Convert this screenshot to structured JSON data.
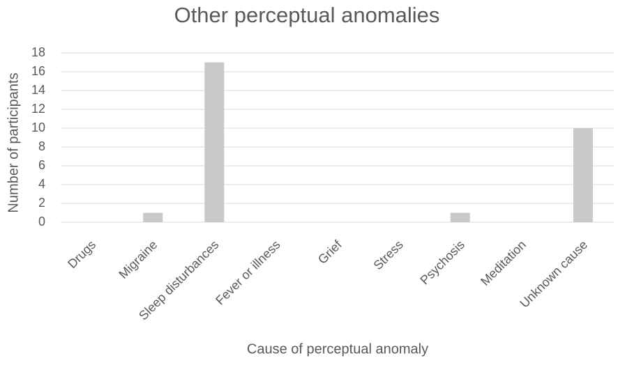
{
  "chart_data": {
    "type": "bar",
    "title": "Other perceptual anomalies",
    "x_label": "Cause of perceptual anomaly",
    "y_label": "Number of participants",
    "categories": [
      "Drugs",
      "Migraine",
      "Sleep disturbances",
      "Fever or illness",
      "Grief",
      "Stress",
      "Psychosis",
      "Meditation",
      "Unknown cause"
    ],
    "values": [
      0,
      1,
      17,
      0,
      0,
      0,
      1,
      0,
      10
    ],
    "color": "#c9c9c9",
    "ylim": [
      0,
      18
    ],
    "yticks": [
      0,
      2,
      4,
      6,
      8,
      10,
      12,
      14,
      16,
      18
    ],
    "grid": true
  }
}
